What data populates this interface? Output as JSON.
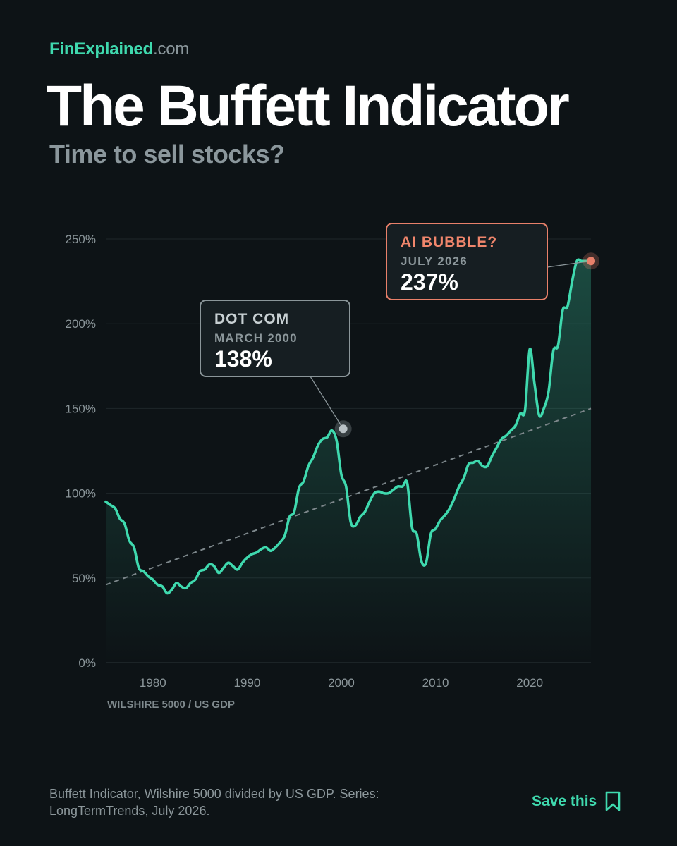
{
  "brand": {
    "name": "FinExplained",
    "tld": ".com"
  },
  "title": "The Buffett Indicator",
  "subtitle": "Time to sell stocks?",
  "footer": {
    "note": "Buffett Indicator, Wilshire 5000 divided by US GDP. Series: LongTermTrends, July 2026.",
    "save_label": "Save this",
    "save_icon": "bookmark-icon"
  },
  "colors": {
    "background": "#0d1316",
    "line": "#3fd9ae",
    "accent": "#e8806a",
    "trend": "#7d878b"
  },
  "chart_data": {
    "type": "area",
    "ylabel": "WILSHIRE 5000 / US GDP",
    "xlim": [
      1975,
      2026.5
    ],
    "ylim": [
      0,
      250
    ],
    "y_ticks": [
      0,
      50,
      100,
      150,
      200,
      250
    ],
    "y_tick_labels": [
      "0%",
      "50%",
      "100%",
      "150%",
      "200%",
      "250%"
    ],
    "x_ticks": [
      1980,
      1990,
      2000,
      2010,
      2020
    ],
    "x_tick_labels": [
      "1980",
      "1990",
      "2000",
      "2010",
      "2020"
    ],
    "grid": true,
    "series": [
      {
        "x": [
          1975,
          1975.5,
          1976,
          1976.5,
          1977,
          1977.5,
          1978,
          1978.5,
          1979,
          1979.5,
          1980,
          1980.5,
          1981,
          1981.5,
          1982,
          1982.5,
          1983,
          1983.5,
          1984,
          1984.5,
          1985,
          1985.5,
          1986,
          1986.5,
          1987,
          1987.5,
          1988,
          1988.5,
          1989,
          1989.5,
          1990,
          1990.5,
          1991,
          1991.5,
          1992,
          1992.5,
          1993,
          1993.5,
          1994,
          1994.5,
          1995,
          1995.5,
          1996,
          1996.5,
          1997,
          1997.5,
          1998,
          1998.5,
          1999,
          1999.5,
          2000,
          2000.5,
          2001,
          2001.5,
          2002,
          2002.5,
          2003,
          2003.5,
          2004,
          2004.5,
          2005,
          2005.5,
          2006,
          2006.5,
          2007,
          2007.5,
          2008,
          2008.5,
          2009,
          2009.5,
          2010,
          2010.5,
          2011,
          2011.5,
          2012,
          2012.5,
          2013,
          2013.5,
          2014,
          2014.5,
          2015,
          2015.5,
          2016,
          2016.5,
          2017,
          2017.5,
          2018,
          2018.5,
          2019,
          2019.5,
          2020,
          2020.5,
          2021,
          2021.5,
          2022,
          2022.5,
          2023,
          2023.5,
          2024,
          2024.5,
          2025,
          2025.5,
          2026,
          2026.5
        ],
        "values": [
          95,
          93,
          91,
          85,
          82,
          72,
          68,
          56,
          54,
          51,
          49,
          46,
          45,
          41,
          43,
          47,
          45,
          44,
          47,
          49,
          54,
          55,
          58,
          57,
          53,
          56,
          59,
          57,
          55,
          59,
          62,
          64,
          65,
          67,
          68,
          66,
          68,
          71,
          75,
          86,
          89,
          103,
          107,
          116,
          121,
          128,
          132,
          133,
          137,
          131,
          111,
          104,
          83,
          81,
          86,
          89,
          95,
          100,
          101,
          100,
          100,
          102,
          104,
          104,
          106,
          80,
          76,
          60,
          59,
          76,
          79,
          84,
          87,
          91,
          97,
          104,
          109,
          117,
          118,
          119,
          116,
          116,
          122,
          127,
          132,
          134,
          137,
          140,
          147,
          149,
          185,
          165,
          146,
          150,
          160,
          184,
          187,
          208,
          210,
          225,
          237,
          237,
          237,
          237
        ],
        "style": "line with filled area"
      },
      {
        "x": [
          1975,
          2026.5
        ],
        "values": [
          46,
          150
        ],
        "style": "dashed trend line"
      }
    ],
    "annotations": [
      {
        "label": "DOT COM",
        "date": "MARCH 2000",
        "value": "138%",
        "x": 2000.2,
        "y": 138
      },
      {
        "label": "AI BUBBLE?",
        "date": "JULY 2026",
        "value": "237%",
        "x": 2026.5,
        "y": 237
      }
    ]
  }
}
